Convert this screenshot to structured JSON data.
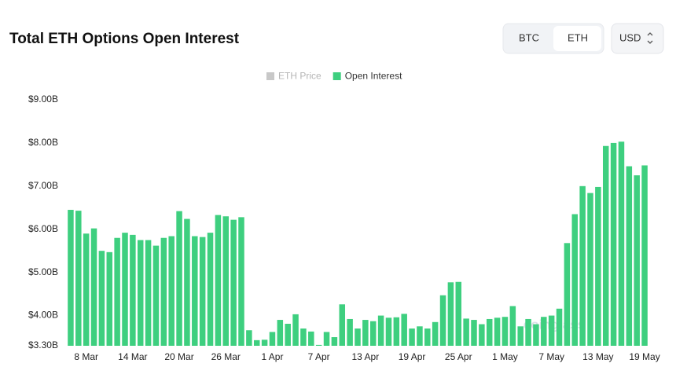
{
  "controls": {
    "tabs": [
      "BTC",
      "ETH"
    ],
    "active_tab": 1,
    "currency": "USD"
  },
  "chart_data": {
    "type": "bar",
    "title": "Total ETH Options Open Interest",
    "watermark": "coinglass",
    "hidden_series": [
      {
        "name": "ETH Price",
        "color": "#c8c8c8"
      }
    ],
    "categories": [
      null,
      null,
      "8 Mar",
      null,
      null,
      null,
      null,
      null,
      "14 Mar",
      null,
      null,
      null,
      null,
      null,
      "20 Mar",
      null,
      null,
      null,
      null,
      null,
      "26 Mar",
      null,
      null,
      null,
      null,
      null,
      "1 Apr",
      null,
      null,
      null,
      null,
      null,
      "7 Apr",
      null,
      null,
      null,
      null,
      null,
      "13 Apr",
      null,
      null,
      null,
      null,
      null,
      "19 Apr",
      null,
      null,
      null,
      null,
      null,
      "25 Apr",
      null,
      null,
      null,
      null,
      null,
      "1 May",
      null,
      null,
      null,
      null,
      null,
      "7 May",
      null,
      null,
      null,
      null,
      null,
      "13 May",
      null,
      null,
      null,
      null,
      null,
      "19 May"
    ],
    "series": [
      {
        "name": "Open Interest",
        "color": "#3ecf7f",
        "values": [
          6.45,
          6.43,
          5.9,
          6.02,
          5.5,
          5.47,
          5.8,
          5.92,
          5.87,
          5.75,
          5.75,
          5.62,
          5.8,
          5.84,
          6.42,
          6.24,
          5.84,
          5.82,
          5.92,
          6.33,
          6.3,
          6.22,
          6.28,
          3.66,
          3.43,
          3.44,
          3.62,
          3.9,
          3.81,
          4.03,
          3.7,
          3.63,
          3.32,
          3.62,
          3.5,
          4.26,
          3.92,
          3.7,
          3.9,
          3.87,
          4.0,
          3.95,
          3.96,
          4.04,
          3.7,
          3.75,
          3.7,
          3.85,
          4.47,
          4.77,
          4.78,
          3.93,
          3.9,
          3.8,
          3.92,
          3.95,
          3.97,
          4.22,
          3.75,
          3.92,
          3.8,
          3.97,
          4.0,
          4.16,
          5.68,
          6.35,
          7.0,
          6.84,
          6.98,
          7.93,
          8.0,
          8.03,
          7.46,
          7.25,
          7.48
        ]
      }
    ],
    "ylim": [
      3.3,
      9.0
    ],
    "yticks": [
      {
        "value": 3.3,
        "label": "$3.30B"
      },
      {
        "value": 4,
        "label": "$4.00B"
      },
      {
        "value": 5,
        "label": "$5.00B"
      },
      {
        "value": 6,
        "label": "$6.00B"
      },
      {
        "value": 7,
        "label": "$7.00B"
      },
      {
        "value": 8,
        "label": "$8.00B"
      },
      {
        "value": 9,
        "label": "$9.00B"
      }
    ],
    "grid": false
  }
}
